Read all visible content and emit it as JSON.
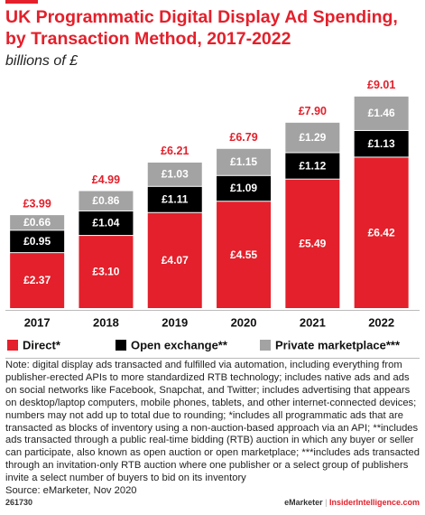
{
  "chart_data": {
    "type": "stacked-bar",
    "title": "UK Programmatic Digital Display Ad Spending,",
    "title_line2": "by Transaction Method, 2017-2022",
    "subtitle": "billions of £",
    "categories": [
      "2017",
      "2018",
      "2019",
      "2020",
      "2021",
      "2022"
    ],
    "series": [
      {
        "name": "Direct*",
        "color": "#e3202b",
        "values": [
          2.37,
          3.1,
          4.07,
          4.55,
          5.49,
          6.42
        ],
        "value_labels": [
          "£2.37",
          "£3.10",
          "£4.07",
          "£4.55",
          "£5.49",
          "£6.42"
        ]
      },
      {
        "name": "Open exchange**",
        "color": "#000000",
        "values": [
          0.95,
          1.04,
          1.11,
          1.09,
          1.12,
          1.13
        ],
        "value_labels": [
          "£0.95",
          "£1.04",
          "£1.11",
          "£1.09",
          "£1.12",
          "£1.13"
        ]
      },
      {
        "name": "Private marketplace***",
        "color": "#a3a3a3",
        "values": [
          0.66,
          0.86,
          1.03,
          1.15,
          1.29,
          1.46
        ],
        "value_labels": [
          "£0.66",
          "£0.86",
          "£1.03",
          "£1.15",
          "£1.29",
          "£1.46"
        ]
      }
    ],
    "totals": [
      3.99,
      4.99,
      6.21,
      6.79,
      7.9,
      9.01
    ],
    "total_labels": [
      "£3.99",
      "£4.99",
      "£6.21",
      "£6.79",
      "£7.90",
      "£9.01"
    ],
    "note": "Note: digital display ads transacted and fulfilled via automation, including everything from publisher-erected APIs to more standardized RTB technology; includes native ads and ads on social networks like Facebook, Snapchat, and Twitter; includes advertising that appears on desktop/laptop computers, mobile phones, tablets, and other internet-connected devices; numbers may not add up to total due to rounding; *includes all programmatic ads that are transacted as blocks of inventory using a non-auction-based approach via an API; **includes ads transacted through a public real-time bidding (RTB) auction in which any buyer or seller can participate, also known as open auction or open marketplace; ***includes ads transacted through an invitation-only RTB auction where one publisher or a select group of publishers invite a select number of buyers to bid on its inventory",
    "source": "Source: eMarketer, Nov 2020",
    "id": "261730",
    "brand": "eMarketer",
    "site": "InsiderIntelligence.com"
  }
}
